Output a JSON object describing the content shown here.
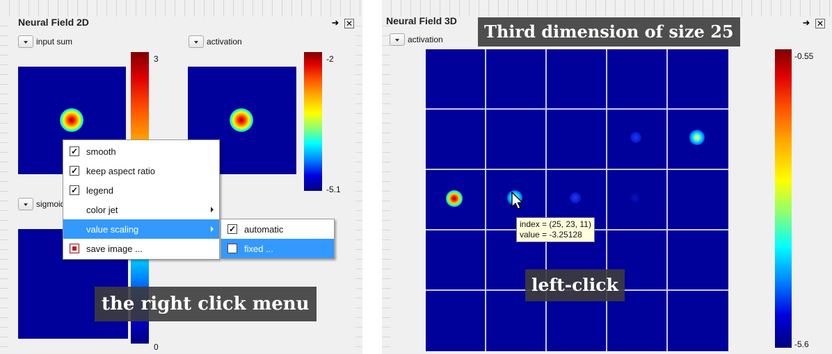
{
  "panel_2d": {
    "title": "Neural Field 2D",
    "plots": {
      "input_sum": {
        "dropdown_label": "input sum",
        "scale_max": "3",
        "scale_min": "0"
      },
      "activation": {
        "dropdown_label": "activation",
        "scale_max": "-2",
        "scale_min": "-5.1"
      },
      "sigmoid": {
        "dropdown_label": "sigmoid"
      }
    },
    "context_menu": {
      "items": [
        {
          "label": "smooth",
          "checked": true
        },
        {
          "label": "keep aspect ratio",
          "checked": true
        },
        {
          "label": "legend",
          "checked": true
        },
        {
          "label": "color jet",
          "has_submenu": true
        },
        {
          "label": "value scaling",
          "has_submenu": true,
          "highlighted": true
        },
        {
          "label": "save image ...",
          "icon": "save-image-icon"
        }
      ],
      "submenu": [
        {
          "label": "automatic",
          "checked": true
        },
        {
          "label": "fixed ...",
          "checked": false,
          "highlighted": true
        }
      ]
    },
    "caption": "the right click menu"
  },
  "panel_3d": {
    "title": "Neural Field 3D",
    "dropdown_label": "activation",
    "scale_max": "-0.55",
    "scale_min": "-5.6",
    "caption_top": "Third dimension of size 25",
    "caption_bottom": "left-click",
    "tooltip": {
      "line1": "index = (25, 23, 11)",
      "line2": "value = -3.25128"
    }
  },
  "colors": {
    "field_background": "#00009a",
    "menu_highlight": "#3399ff",
    "tooltip_background": "#ffffdc",
    "caption_background": "#3c3c3c"
  }
}
